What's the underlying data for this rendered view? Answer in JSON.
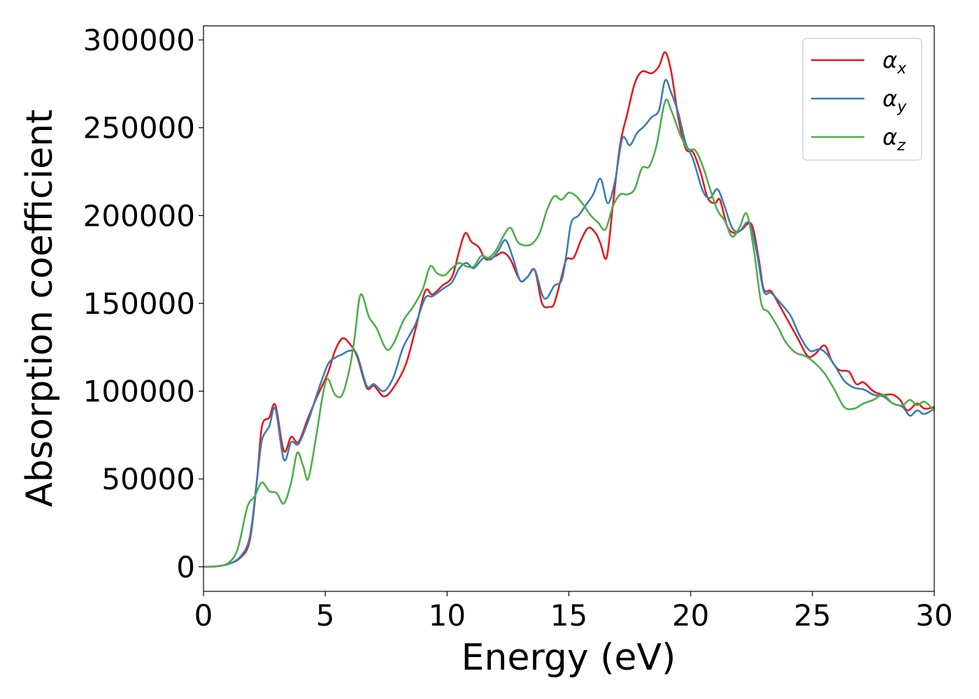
{
  "chart_data": {
    "type": "line",
    "title": "",
    "xlabel": "Energy (eV)",
    "ylabel": "Absorption coefficient",
    "xlim": [
      0,
      30
    ],
    "ylim": [
      -14000,
      308000
    ],
    "xticks": [
      0,
      5,
      10,
      15,
      20,
      25,
      30
    ],
    "xtick_labels": [
      "0",
      "5",
      "10",
      "15",
      "20",
      "25",
      "30"
    ],
    "yticks": [
      0,
      50000,
      100000,
      150000,
      200000,
      250000,
      300000
    ],
    "ytick_labels": [
      "0",
      "50000",
      "100000",
      "150000",
      "200000",
      "250000",
      "300000"
    ],
    "grid": false,
    "legend_position": "top-right",
    "series": [
      {
        "name": "αx",
        "symbol": "α",
        "subscript": "x",
        "color": "#e41a1c",
        "points": [
          [
            0,
            0
          ],
          [
            0.5,
            200
          ],
          [
            1,
            1500
          ],
          [
            1.5,
            5000
          ],
          [
            1.9,
            15000
          ],
          [
            2.2,
            50000
          ],
          [
            2.4,
            80000
          ],
          [
            2.7,
            85000
          ],
          [
            2.95,
            92000
          ],
          [
            3.3,
            66000
          ],
          [
            3.6,
            74000
          ],
          [
            3.9,
            71000
          ],
          [
            4.3,
            85000
          ],
          [
            4.7,
            98000
          ],
          [
            5.1,
            110000
          ],
          [
            5.4,
            123000
          ],
          [
            5.7,
            130000
          ],
          [
            6.0,
            127000
          ],
          [
            6.3,
            120000
          ],
          [
            6.7,
            102000
          ],
          [
            7.0,
            103000
          ],
          [
            7.4,
            97000
          ],
          [
            7.8,
            102000
          ],
          [
            8.3,
            115000
          ],
          [
            8.7,
            135000
          ],
          [
            9.1,
            157000
          ],
          [
            9.4,
            155000
          ],
          [
            9.8,
            160000
          ],
          [
            10.2,
            165000
          ],
          [
            10.5,
            180000
          ],
          [
            10.75,
            190000
          ],
          [
            11.0,
            185000
          ],
          [
            11.3,
            182000
          ],
          [
            11.6,
            175000
          ],
          [
            12.0,
            177000
          ],
          [
            12.3,
            179000
          ],
          [
            12.6,
            175000
          ],
          [
            13.0,
            163000
          ],
          [
            13.3,
            165000
          ],
          [
            13.6,
            169000
          ],
          [
            13.9,
            150000
          ],
          [
            14.2,
            148000
          ],
          [
            14.4,
            150000
          ],
          [
            14.7,
            165000
          ],
          [
            14.9,
            175000
          ],
          [
            15.2,
            176000
          ],
          [
            15.5,
            186000
          ],
          [
            15.8,
            193000
          ],
          [
            16.1,
            190000
          ],
          [
            16.3,
            184000
          ],
          [
            16.55,
            176000
          ],
          [
            16.8,
            205000
          ],
          [
            17.1,
            240000
          ],
          [
            17.4,
            258000
          ],
          [
            17.7,
            275000
          ],
          [
            18.0,
            282000
          ],
          [
            18.4,
            281000
          ],
          [
            18.7,
            285000
          ],
          [
            18.95,
            293000
          ],
          [
            19.2,
            282000
          ],
          [
            19.5,
            255000
          ],
          [
            19.8,
            238000
          ],
          [
            20.1,
            236000
          ],
          [
            20.4,
            225000
          ],
          [
            20.7,
            210000
          ],
          [
            21.0,
            207000
          ],
          [
            21.2,
            209000
          ],
          [
            21.5,
            194000
          ],
          [
            21.8,
            190000
          ],
          [
            22.1,
            192000
          ],
          [
            22.5,
            195000
          ],
          [
            22.8,
            175000
          ],
          [
            23.0,
            158000
          ],
          [
            23.3,
            157000
          ],
          [
            23.6,
            150000
          ],
          [
            24.0,
            140000
          ],
          [
            24.4,
            130000
          ],
          [
            24.8,
            120000
          ],
          [
            25.1,
            121000
          ],
          [
            25.5,
            126000
          ],
          [
            25.8,
            117000
          ],
          [
            26.1,
            112000
          ],
          [
            26.5,
            111000
          ],
          [
            26.8,
            104000
          ],
          [
            27.1,
            105000
          ],
          [
            27.5,
            100000
          ],
          [
            27.9,
            98000
          ],
          [
            28.3,
            98000
          ],
          [
            28.6,
            95000
          ],
          [
            28.9,
            89000
          ],
          [
            29.3,
            93000
          ],
          [
            29.6,
            90000
          ],
          [
            30,
            91000
          ]
        ]
      },
      {
        "name": "αy",
        "symbol": "α",
        "subscript": "y",
        "color": "#377eb8",
        "points": [
          [
            0,
            0
          ],
          [
            0.5,
            200
          ],
          [
            1,
            1500
          ],
          [
            1.5,
            5500
          ],
          [
            1.9,
            17000
          ],
          [
            2.2,
            50000
          ],
          [
            2.4,
            72000
          ],
          [
            2.7,
            80000
          ],
          [
            2.95,
            90000
          ],
          [
            3.3,
            61000
          ],
          [
            3.6,
            71000
          ],
          [
            3.9,
            70000
          ],
          [
            4.3,
            83000
          ],
          [
            4.7,
            100000
          ],
          [
            5.1,
            115000
          ],
          [
            5.4,
            119000
          ],
          [
            5.7,
            121000
          ],
          [
            6.0,
            123000
          ],
          [
            6.3,
            121000
          ],
          [
            6.7,
            103000
          ],
          [
            7.0,
            104000
          ],
          [
            7.4,
            100000
          ],
          [
            7.8,
            108000
          ],
          [
            8.2,
            125000
          ],
          [
            8.7,
            138000
          ],
          [
            9.1,
            153000
          ],
          [
            9.4,
            154000
          ],
          [
            9.8,
            158000
          ],
          [
            10.2,
            162000
          ],
          [
            10.5,
            170000
          ],
          [
            10.8,
            173000
          ],
          [
            11.1,
            170000
          ],
          [
            11.5,
            176000
          ],
          [
            11.8,
            175000
          ],
          [
            12.1,
            180000
          ],
          [
            12.4,
            186000
          ],
          [
            12.7,
            176000
          ],
          [
            13.0,
            163000
          ],
          [
            13.3,
            165000
          ],
          [
            13.6,
            169000
          ],
          [
            13.9,
            155000
          ],
          [
            14.1,
            153000
          ],
          [
            14.4,
            160000
          ],
          [
            14.7,
            163000
          ],
          [
            14.9,
            178000
          ],
          [
            15.1,
            196000
          ],
          [
            15.4,
            200000
          ],
          [
            15.7,
            206000
          ],
          [
            16.0,
            212000
          ],
          [
            16.3,
            221000
          ],
          [
            16.6,
            207000
          ],
          [
            16.9,
            220000
          ],
          [
            17.2,
            244000
          ],
          [
            17.5,
            240000
          ],
          [
            17.8,
            247000
          ],
          [
            18.1,
            251000
          ],
          [
            18.4,
            256000
          ],
          [
            18.7,
            260000
          ],
          [
            18.95,
            277000
          ],
          [
            19.2,
            270000
          ],
          [
            19.5,
            258000
          ],
          [
            19.8,
            241000
          ],
          [
            20.1,
            232000
          ],
          [
            20.5,
            214000
          ],
          [
            20.8,
            210000
          ],
          [
            21.1,
            215000
          ],
          [
            21.4,
            205000
          ],
          [
            21.7,
            193000
          ],
          [
            22.0,
            191000
          ],
          [
            22.4,
            196000
          ],
          [
            22.7,
            180000
          ],
          [
            23.0,
            157000
          ],
          [
            23.3,
            156000
          ],
          [
            23.7,
            150000
          ],
          [
            24.1,
            143000
          ],
          [
            24.5,
            131000
          ],
          [
            24.9,
            123000
          ],
          [
            25.3,
            124000
          ],
          [
            25.6,
            121000
          ],
          [
            25.9,
            115000
          ],
          [
            26.3,
            106000
          ],
          [
            26.7,
            102000
          ],
          [
            27.1,
            101000
          ],
          [
            27.5,
            98000
          ],
          [
            27.9,
            97000
          ],
          [
            28.3,
            93000
          ],
          [
            28.7,
            91000
          ],
          [
            29.0,
            86000
          ],
          [
            29.3,
            89000
          ],
          [
            29.6,
            87000
          ],
          [
            30,
            90000
          ]
        ]
      },
      {
        "name": "αz",
        "symbol": "α",
        "subscript": "z",
        "color": "#4daf4a",
        "points": [
          [
            0,
            0
          ],
          [
            0.5,
            300
          ],
          [
            1,
            2000
          ],
          [
            1.4,
            10000
          ],
          [
            1.8,
            34000
          ],
          [
            2.1,
            40000
          ],
          [
            2.4,
            48000
          ],
          [
            2.7,
            43000
          ],
          [
            3.0,
            42000
          ],
          [
            3.3,
            36000
          ],
          [
            3.6,
            48000
          ],
          [
            3.85,
            65000
          ],
          [
            4.1,
            57000
          ],
          [
            4.3,
            50000
          ],
          [
            4.6,
            72000
          ],
          [
            4.9,
            98000
          ],
          [
            5.1,
            107000
          ],
          [
            5.4,
            98000
          ],
          [
            5.7,
            98000
          ],
          [
            6.0,
            113000
          ],
          [
            6.2,
            130000
          ],
          [
            6.45,
            155000
          ],
          [
            6.8,
            142000
          ],
          [
            7.1,
            136000
          ],
          [
            7.5,
            124000
          ],
          [
            7.8,
            127000
          ],
          [
            8.2,
            140000
          ],
          [
            8.6,
            148000
          ],
          [
            9.0,
            158000
          ],
          [
            9.3,
            171000
          ],
          [
            9.6,
            167000
          ],
          [
            9.9,
            166000
          ],
          [
            10.2,
            170000
          ],
          [
            10.5,
            173000
          ],
          [
            10.8,
            171000
          ],
          [
            11.1,
            171000
          ],
          [
            11.4,
            177000
          ],
          [
            11.7,
            176000
          ],
          [
            12.0,
            180000
          ],
          [
            12.3,
            188000
          ],
          [
            12.6,
            193000
          ],
          [
            12.9,
            185000
          ],
          [
            13.2,
            183000
          ],
          [
            13.5,
            184000
          ],
          [
            13.8,
            190000
          ],
          [
            14.1,
            203000
          ],
          [
            14.4,
            211000
          ],
          [
            14.7,
            209000
          ],
          [
            15.0,
            213000
          ],
          [
            15.3,
            211000
          ],
          [
            15.6,
            206000
          ],
          [
            15.9,
            200000
          ],
          [
            16.2,
            196000
          ],
          [
            16.5,
            192000
          ],
          [
            16.8,
            205000
          ],
          [
            17.1,
            212000
          ],
          [
            17.4,
            212000
          ],
          [
            17.7,
            215000
          ],
          [
            18.0,
            227000
          ],
          [
            18.3,
            228000
          ],
          [
            18.6,
            240000
          ],
          [
            18.95,
            265000
          ],
          [
            19.2,
            260000
          ],
          [
            19.6,
            245000
          ],
          [
            19.9,
            238000
          ],
          [
            20.2,
            237000
          ],
          [
            20.5,
            228000
          ],
          [
            20.8,
            215000
          ],
          [
            21.1,
            203000
          ],
          [
            21.4,
            197000
          ],
          [
            21.7,
            188000
          ],
          [
            22.0,
            193000
          ],
          [
            22.3,
            201000
          ],
          [
            22.6,
            180000
          ],
          [
            22.9,
            150000
          ],
          [
            23.2,
            145000
          ],
          [
            23.6,
            136000
          ],
          [
            23.9,
            128000
          ],
          [
            24.3,
            122000
          ],
          [
            24.7,
            120000
          ],
          [
            25.1,
            116000
          ],
          [
            25.5,
            110000
          ],
          [
            25.9,
            101000
          ],
          [
            26.3,
            91000
          ],
          [
            26.7,
            90000
          ],
          [
            27.1,
            93000
          ],
          [
            27.5,
            95000
          ],
          [
            27.9,
            98000
          ],
          [
            28.3,
            93000
          ],
          [
            28.7,
            92000
          ],
          [
            29.0,
            95000
          ],
          [
            29.3,
            92000
          ],
          [
            29.6,
            94000
          ],
          [
            30,
            89000
          ]
        ]
      }
    ]
  }
}
